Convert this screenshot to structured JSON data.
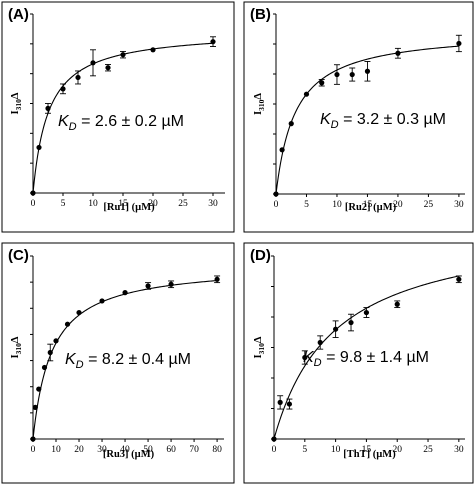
{
  "chart_data": [
    {
      "type": "scatter",
      "panel_label": "(A)",
      "annotation": {
        "prefix": "K",
        "subscript": "D",
        "value": " = 2.6 ± 0.2 µM"
      },
      "xlabel": "[Ru1] (µM)",
      "ylabel": {
        "main": "I",
        "sub": "310",
        "suffix": "Δ"
      },
      "xlim": [
        0,
        32
      ],
      "ylim": [
        0,
        1.1
      ],
      "xticks": [
        0,
        5,
        10,
        15,
        20,
        25,
        30
      ],
      "ytick_count": 7,
      "fit": {
        "model": "hyperbolic",
        "bmax": 1.0,
        "kd": 2.6
      },
      "points": [
        {
          "x": 0,
          "y": 0.0,
          "err": 0
        },
        {
          "x": 1,
          "y": 0.28,
          "err": 0
        },
        {
          "x": 2.5,
          "y": 0.52,
          "err": 0.03
        },
        {
          "x": 5,
          "y": 0.64,
          "err": 0.03
        },
        {
          "x": 7.5,
          "y": 0.71,
          "err": 0.04
        },
        {
          "x": 10,
          "y": 0.8,
          "err": 0.08
        },
        {
          "x": 12.5,
          "y": 0.77,
          "err": 0.02
        },
        {
          "x": 15,
          "y": 0.85,
          "err": 0.02
        },
        {
          "x": 20,
          "y": 0.88,
          "err": 0
        },
        {
          "x": 30,
          "y": 0.93,
          "err": 0.03
        }
      ]
    },
    {
      "type": "scatter",
      "panel_label": "(B)",
      "annotation": {
        "prefix": "K",
        "subscript": "D",
        "value": " = 3.2 ± 0.3 µM"
      },
      "xlabel": "[Ru2] (µM)",
      "ylabel": {
        "main": "I",
        "sub": "310",
        "suffix": "Δ"
      },
      "xlim": [
        0,
        31
      ],
      "ylim": [
        0,
        1.1
      ],
      "xticks": [
        0,
        5,
        10,
        15,
        20,
        25,
        30
      ],
      "ytick_count": 7,
      "fit": {
        "model": "hyperbolic",
        "bmax": 1.0,
        "kd": 3.2
      },
      "points": [
        {
          "x": 0,
          "y": 0.0,
          "err": 0
        },
        {
          "x": 1,
          "y": 0.27,
          "err": 0
        },
        {
          "x": 2.5,
          "y": 0.43,
          "err": 0
        },
        {
          "x": 5,
          "y": 0.61,
          "err": 0
        },
        {
          "x": 7.5,
          "y": 0.68,
          "err": 0.02
        },
        {
          "x": 10,
          "y": 0.73,
          "err": 0.06
        },
        {
          "x": 12.5,
          "y": 0.73,
          "err": 0.04
        },
        {
          "x": 15,
          "y": 0.75,
          "err": 0.06
        },
        {
          "x": 20,
          "y": 0.86,
          "err": 0.03
        },
        {
          "x": 30,
          "y": 0.92,
          "err": 0.05
        }
      ]
    },
    {
      "type": "scatter",
      "panel_label": "(C)",
      "annotation": {
        "prefix": "K",
        "subscript": "D",
        "value": " = 8.2 ± 0.4 µM"
      },
      "xlabel": "[Ru3] (µM)",
      "ylabel": {
        "main": "I",
        "sub": "310",
        "suffix": "Δ"
      },
      "xlim": [
        0,
        83
      ],
      "ylim": [
        0,
        1.1
      ],
      "xticks": [
        0,
        10,
        20,
        30,
        40,
        50,
        60,
        70,
        80
      ],
      "ytick_count": 8,
      "fit": {
        "model": "hyperbolic",
        "bmax": 1.05,
        "kd": 8.2
      },
      "points": [
        {
          "x": 0,
          "y": 0.0,
          "err": 0
        },
        {
          "x": 1,
          "y": 0.19,
          "err": 0
        },
        {
          "x": 2.5,
          "y": 0.3,
          "err": 0
        },
        {
          "x": 5,
          "y": 0.43,
          "err": 0
        },
        {
          "x": 7.5,
          "y": 0.52,
          "err": 0.05
        },
        {
          "x": 10,
          "y": 0.59,
          "err": 0
        },
        {
          "x": 15,
          "y": 0.69,
          "err": 0
        },
        {
          "x": 20,
          "y": 0.76,
          "err": 0
        },
        {
          "x": 30,
          "y": 0.83,
          "err": 0
        },
        {
          "x": 40,
          "y": 0.88,
          "err": 0
        },
        {
          "x": 50,
          "y": 0.92,
          "err": 0.02
        },
        {
          "x": 60,
          "y": 0.93,
          "err": 0.02
        },
        {
          "x": 80,
          "y": 0.96,
          "err": 0.02
        }
      ]
    },
    {
      "type": "scatter",
      "panel_label": "(D)",
      "annotation": {
        "prefix": "K",
        "subscript": "D",
        "value": " = 9.8 ± 1.4 µM"
      },
      "xlabel": "[ThT] (µM)",
      "ylabel": {
        "main": "I",
        "sub": "310",
        "suffix": "Δ"
      },
      "xlim": [
        0,
        31
      ],
      "ylim": [
        0,
        1.1
      ],
      "xticks": [
        0,
        5,
        10,
        15,
        20,
        25,
        30
      ],
      "ytick_count": 7,
      "fit": {
        "model": "hyperbolic",
        "bmax": 1.3,
        "kd": 9.8
      },
      "points": [
        {
          "x": 0,
          "y": 0.0,
          "err": 0
        },
        {
          "x": 1,
          "y": 0.22,
          "err": 0.04
        },
        {
          "x": 2.5,
          "y": 0.21,
          "err": 0.03
        },
        {
          "x": 5,
          "y": 0.49,
          "err": 0.04
        },
        {
          "x": 7.5,
          "y": 0.58,
          "err": 0.04
        },
        {
          "x": 10,
          "y": 0.66,
          "err": 0.05
        },
        {
          "x": 12.5,
          "y": 0.7,
          "err": 0.05
        },
        {
          "x": 15,
          "y": 0.76,
          "err": 0.03
        },
        {
          "x": 20,
          "y": 0.81,
          "err": 0.02
        },
        {
          "x": 30,
          "y": 0.96,
          "err": 0.02
        }
      ]
    }
  ]
}
